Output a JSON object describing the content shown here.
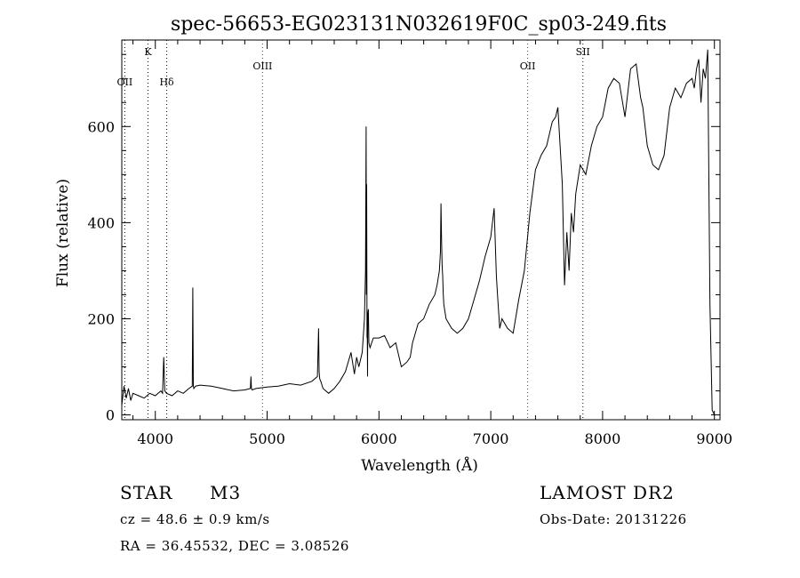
{
  "chart_data": {
    "type": "line",
    "title": "spec-56653-EG023131N032619F0C_sp03-249.fits",
    "xlabel": "Wavelength (Å)",
    "ylabel": "Flux (relative)",
    "xlim": [
      3700,
      9050
    ],
    "ylim": [
      -10,
      780
    ],
    "x_ticks": [
      4000,
      5000,
      6000,
      7000,
      8000,
      9000
    ],
    "y_ticks": [
      0,
      200,
      400,
      600
    ],
    "grid": false,
    "line_markers": [
      {
        "label": "OII",
        "x": 3727,
        "color": "#000000",
        "label_row": 2
      },
      {
        "label": "K",
        "x": 3934,
        "color": "#000000",
        "label_row": 0
      },
      {
        "label": "Hδ",
        "x": 4102,
        "color": "#000000",
        "label_row": 2
      },
      {
        "label": "OIII",
        "x": 4959,
        "color": "#cc0000",
        "label_row": 1
      },
      {
        "label": "OII",
        "x": 7330,
        "color": "#cc0000",
        "label_row": 1
      },
      {
        "label": "SII",
        "x": 7824,
        "color": "#000000",
        "label_row": 0
      }
    ],
    "series": [
      {
        "color": "#000000",
        "x": [
          3700,
          3720,
          3740,
          3760,
          3780,
          3800,
          3850,
          3900,
          3950,
          4000,
          4050,
          4065,
          4075,
          4085,
          4100,
          4150,
          4200,
          4250,
          4300,
          4330,
          4335,
          4340,
          4345,
          4360,
          4400,
          4500,
          4600,
          4700,
          4800,
          4850,
          4855,
          4860,
          4865,
          4900,
          5000,
          5100,
          5200,
          5300,
          5400,
          5450,
          5460,
          5465,
          5470,
          5480,
          5500,
          5550,
          5600,
          5650,
          5700,
          5750,
          5780,
          5800,
          5820,
          5850,
          5870,
          5880,
          5885,
          5888,
          5890,
          5893,
          5895,
          5898,
          5900,
          5905,
          5910,
          5920,
          5950,
          6000,
          6050,
          6100,
          6150,
          6200,
          6250,
          6280,
          6300,
          6350,
          6400,
          6450,
          6500,
          6520,
          6540,
          6550,
          6555,
          6560,
          6565,
          6570,
          6575,
          6580,
          6600,
          6650,
          6700,
          6750,
          6800,
          6850,
          6900,
          6950,
          7000,
          7030,
          7050,
          7060,
          7080,
          7100,
          7150,
          7200,
          7250,
          7300,
          7350,
          7400,
          7450,
          7500,
          7550,
          7580,
          7600,
          7620,
          7640,
          7660,
          7680,
          7700,
          7720,
          7740,
          7760,
          7800,
          7850,
          7900,
          7950,
          8000,
          8050,
          8100,
          8150,
          8200,
          8250,
          8300,
          8340,
          8360,
          8380,
          8400,
          8450,
          8500,
          8550,
          8600,
          8650,
          8700,
          8750,
          8800,
          8820,
          8840,
          8860,
          8880,
          8900,
          8920,
          8940,
          8960,
          8980,
          9000
        ],
        "y": [
          20,
          60,
          35,
          55,
          30,
          45,
          40,
          35,
          45,
          40,
          50,
          45,
          120,
          50,
          45,
          40,
          50,
          45,
          55,
          60,
          265,
          60,
          55,
          60,
          62,
          60,
          55,
          50,
          52,
          55,
          80,
          55,
          52,
          55,
          58,
          60,
          65,
          62,
          70,
          80,
          180,
          90,
          75,
          70,
          55,
          45,
          55,
          70,
          90,
          130,
          85,
          120,
          100,
          130,
          200,
          300,
          600,
          250,
          480,
          160,
          200,
          80,
          210,
          220,
          150,
          140,
          160,
          160,
          165,
          140,
          150,
          100,
          110,
          120,
          150,
          190,
          200,
          230,
          250,
          270,
          300,
          340,
          440,
          360,
          310,
          290,
          250,
          230,
          200,
          180,
          170,
          180,
          200,
          240,
          280,
          330,
          370,
          430,
          290,
          250,
          180,
          200,
          180,
          170,
          240,
          300,
          420,
          510,
          540,
          560,
          610,
          620,
          640,
          560,
          480,
          270,
          380,
          300,
          420,
          380,
          460,
          520,
          500,
          560,
          600,
          620,
          680,
          700,
          690,
          620,
          720,
          730,
          660,
          640,
          600,
          560,
          520,
          510,
          540,
          640,
          680,
          660,
          690,
          700,
          680,
          720,
          740,
          650,
          720,
          700,
          760,
          230,
          10,
          0
        ]
      }
    ]
  },
  "footer": {
    "class_label": "STAR",
    "subclass": "M3",
    "survey": "LAMOST DR2",
    "cz": "cz = 48.6 ± 0.9 km/s",
    "obs_date": "Obs-Date: 20131226",
    "coords": "RA =   36.45532, DEC =    3.08526"
  }
}
